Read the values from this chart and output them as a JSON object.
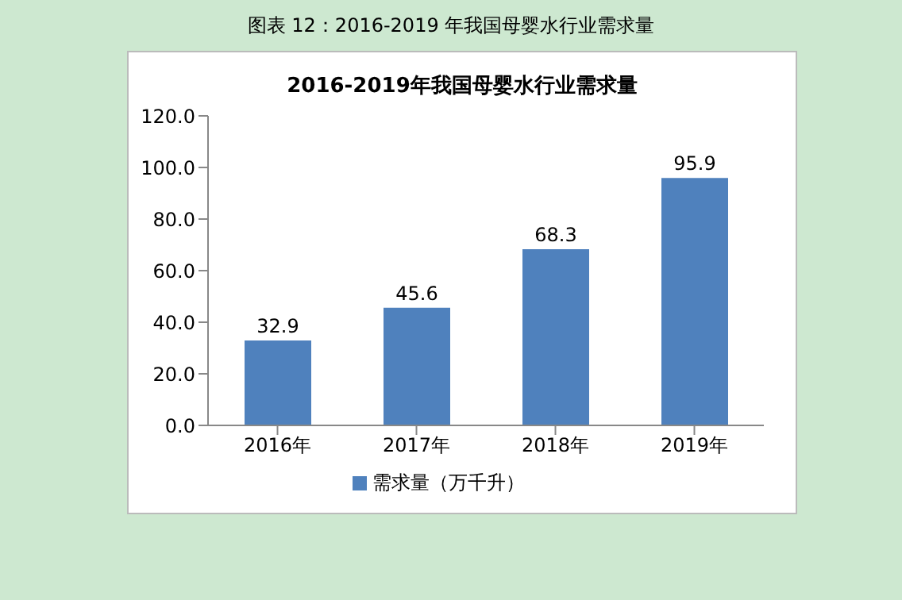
{
  "chart_data": {
    "type": "bar",
    "title": "图表 12：2016-2019 年我国母婴水行业需求量",
    "subtitle": "2016-2019年我国母婴水行业需求量",
    "categories": [
      "2016年",
      "2017年",
      "2018年",
      "2019年"
    ],
    "series": [
      {
        "name": "需求量（万千升）",
        "color": "#4f81bd",
        "values": [
          32.9,
          45.6,
          68.3,
          95.9
        ]
      }
    ],
    "ylim": [
      0,
      120
    ],
    "yticks": [
      {
        "value": 0,
        "label": "0.0"
      },
      {
        "value": 20,
        "label": "20.0"
      },
      {
        "value": 40,
        "label": "40.0"
      },
      {
        "value": 60,
        "label": "60.0"
      },
      {
        "value": 80,
        "label": "80.0"
      },
      {
        "value": 100,
        "label": "100.0"
      },
      {
        "value": 120,
        "label": "120.0"
      }
    ],
    "data_labels": true,
    "grid": false,
    "legend": "bottom"
  }
}
